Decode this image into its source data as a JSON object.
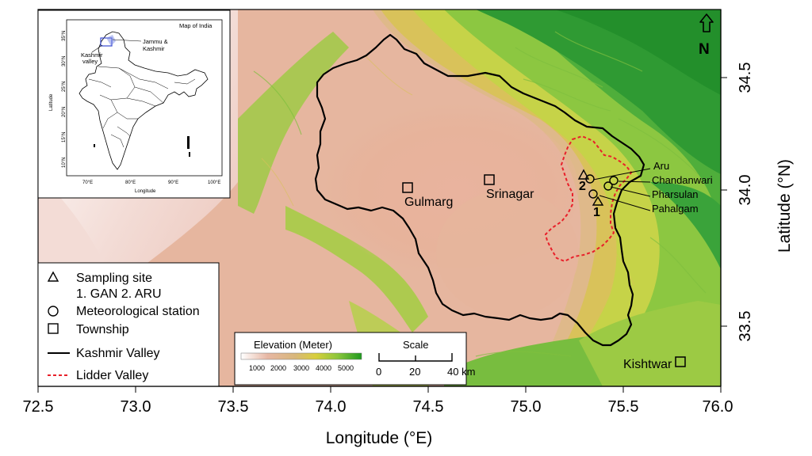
{
  "map": {
    "x_axis": {
      "title": "Longitude (°E)",
      "ticks": [
        "72.5",
        "73.0",
        "73.5",
        "74.0",
        "74.5",
        "75.0",
        "75.5",
        "76.0"
      ]
    },
    "y_axis": {
      "title": "Latitude (°N)",
      "ticks": [
        "33.5",
        "34.0",
        "34.5"
      ]
    },
    "north_label": "N",
    "places": {
      "gulmarg": "Gulmarg",
      "srinagar": "Srinagar",
      "kishtwar": "Kishtwar",
      "aru": "Aru",
      "chandanwari": "Chandanwari",
      "pharsulan": "Pharsulan",
      "pahalgam": "Pahalgam",
      "site_1": "1",
      "site_2": "2"
    },
    "colors": {
      "kashmir_valley": "#000000",
      "lidder_valley": "#e8202a",
      "lowland": "#e8b49c",
      "highland": "#3aa33a"
    }
  },
  "inset": {
    "title": "Map of India",
    "callout_jk": "Jammu &",
    "callout_jk2": "Kashmir",
    "callout_kv": "Kashmir",
    "callout_kv2": "valley",
    "xlabel": "Longitude",
    "ylabel": "Latitude",
    "xticks": [
      "70°E",
      "80°E",
      "90°E",
      "100°E"
    ],
    "yticks": [
      "35°N",
      "30°N",
      "25°N",
      "20°N",
      "15°N",
      "10°N"
    ]
  },
  "legend": {
    "sampling_site": "Sampling site",
    "sampling_detail": "1. GAN 2. ARU",
    "met_station": "Meteorological station",
    "township": "Township",
    "kashmir_valley": "Kashmir Valley",
    "lidder_valley": "Lidder Valley"
  },
  "elevation": {
    "title": "Elevation (Meter)",
    "ticks": [
      "1000",
      "2000",
      "3000",
      "4000",
      "5000"
    ],
    "min_color": "#ffffff",
    "max_color": "#1f9a1f"
  },
  "scale": {
    "title": "Scale",
    "ticks": [
      "0",
      "20",
      "40 km"
    ]
  }
}
